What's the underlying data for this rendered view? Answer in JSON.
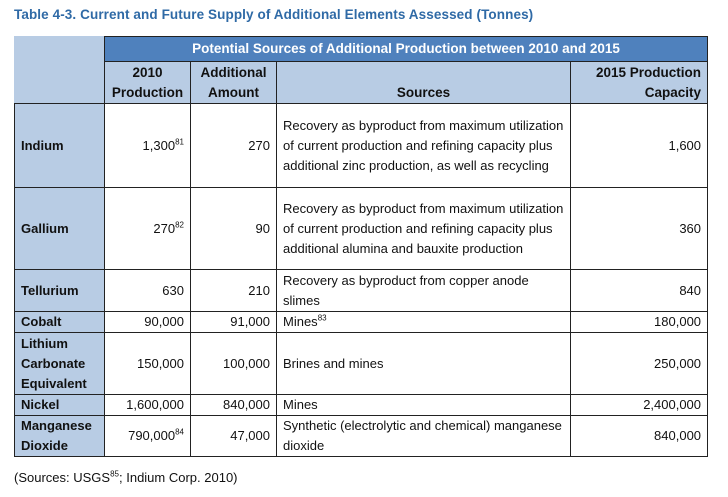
{
  "caption": "Table 4-3. Current and Future Supply of Additional Elements Assessed (Tonnes)",
  "table": {
    "banner": "Potential Sources of Additional Production between 2010 and 2015",
    "headers": {
      "production_2010": [
        "2010",
        "Production"
      ],
      "additional": [
        "Additional",
        "Amount"
      ],
      "sources": "Sources",
      "capacity_2015": [
        "2015 Production",
        "Capacity"
      ]
    },
    "rows": [
      {
        "element": "Indium",
        "production": "1,300",
        "production_sup": "81",
        "additional": "270",
        "sources": "Recovery as byproduct from maximum utilization of current production and refining capacity plus additional zinc production, as well as recycling",
        "sources_sup": "",
        "capacity": "1,600"
      },
      {
        "element": "Gallium",
        "production": "270",
        "production_sup": "82",
        "additional": "90",
        "sources": "Recovery as byproduct from maximum utilization of current production and refining capacity plus additional alumina and bauxite production",
        "sources_sup": "",
        "capacity": "360"
      },
      {
        "element": "Tellurium",
        "production": "630",
        "production_sup": "",
        "additional": "210",
        "sources": "Recovery as byproduct from copper anode slimes",
        "sources_sup": "",
        "capacity": "840"
      },
      {
        "element": "Cobalt",
        "production": "90,000",
        "production_sup": "",
        "additional": "91,000",
        "sources": "Mines",
        "sources_sup": "83",
        "capacity": "180,000"
      },
      {
        "element": "Lithium Carbonate Equivalent",
        "production": "150,000",
        "production_sup": "",
        "additional": "100,000",
        "sources": "Brines and mines",
        "sources_sup": "",
        "capacity": "250,000"
      },
      {
        "element": "Nickel",
        "production": "1,600,000",
        "production_sup": "",
        "additional": "840,000",
        "sources": "Mines",
        "sources_sup": "",
        "capacity": "2,400,000"
      },
      {
        "element": "Manganese Dioxide",
        "production": "790,000",
        "production_sup": "84",
        "additional": "47,000",
        "sources": "Synthetic (electrolytic and chemical) manganese dioxide",
        "sources_sup": "",
        "capacity": "840,000"
      }
    ]
  },
  "footnote": {
    "prefix": "(Sources: USGS",
    "sup": "85",
    "suffix": "; Indium Corp. 2010)"
  }
}
